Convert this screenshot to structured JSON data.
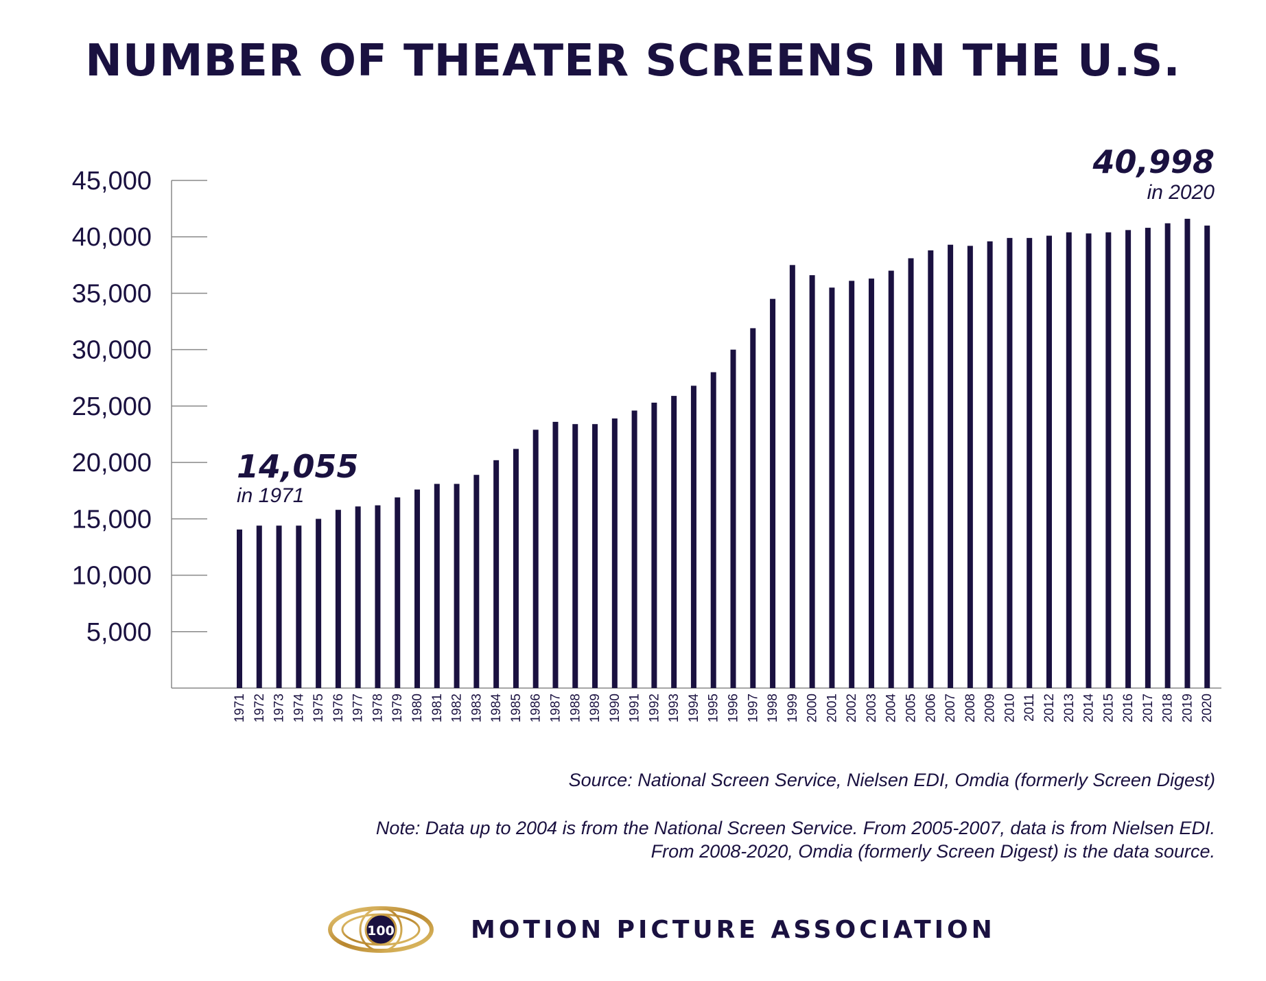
{
  "colors": {
    "bar": "#1a1140",
    "axis": "#888888",
    "text": "#1a1140",
    "logo_gold": "#c8a24a",
    "logo_center": "#1a1140"
  },
  "chart_data": {
    "type": "bar",
    "title": "NUMBER OF THEATER SCREENS IN THE U.S.",
    "xlabel": "",
    "ylabel": "",
    "ylim": [
      0,
      45000
    ],
    "yticks": [
      5000,
      10000,
      15000,
      20000,
      25000,
      30000,
      35000,
      40000,
      45000
    ],
    "ytick_labels": [
      "5,000",
      "10,000",
      "15,000",
      "20,000",
      "25,000",
      "30,000",
      "35,000",
      "40,000",
      "45,000"
    ],
    "grid": false,
    "categories": [
      "1971",
      "1972",
      "1973",
      "1974",
      "1975",
      "1976",
      "1977",
      "1978",
      "1979",
      "1980",
      "1981",
      "1982",
      "1983",
      "1984",
      "1985",
      "1986",
      "1987",
      "1988",
      "1989",
      "1990",
      "1991",
      "1992",
      "1993",
      "1994",
      "1995",
      "1996",
      "1997",
      "1998",
      "1999",
      "2000",
      "2001",
      "2002",
      "2003",
      "2004",
      "2005",
      "2006",
      "2007",
      "2008",
      "2009",
      "2010",
      "2011",
      "2012",
      "2013",
      "2014",
      "2015",
      "2016",
      "2017",
      "2018",
      "2019",
      "2020"
    ],
    "values": [
      14055,
      14400,
      14400,
      14400,
      15000,
      15800,
      16100,
      16200,
      16900,
      17600,
      18100,
      18100,
      18900,
      20200,
      21200,
      22900,
      23600,
      23400,
      23400,
      23900,
      24600,
      25300,
      25900,
      26800,
      28000,
      30000,
      31900,
      34500,
      37500,
      36600,
      35500,
      36100,
      36300,
      37000,
      38100,
      38800,
      39300,
      39200,
      39600,
      39900,
      39900,
      40100,
      40400,
      40300,
      40400,
      40600,
      40800,
      41200,
      41600,
      40998
    ],
    "annotations": [
      {
        "big": "14,055",
        "small": "in 1971",
        "category": "1971"
      },
      {
        "big": "40,998",
        "small": "in 2020",
        "category": "2020"
      }
    ]
  },
  "source": "Source: National Screen Service, Nielsen EDI, Omdia (formerly Screen Digest)",
  "note": {
    "line1": "Note: Data up to 2004 is from the National Screen Service.  From 2005-2007, data is from Nielsen EDI.",
    "line2": "From 2008-2020, Omdia (formerly Screen Digest) is the data source."
  },
  "footer": {
    "logo_text": "100",
    "org_name": "MOTION PICTURE ASSOCIATION"
  }
}
